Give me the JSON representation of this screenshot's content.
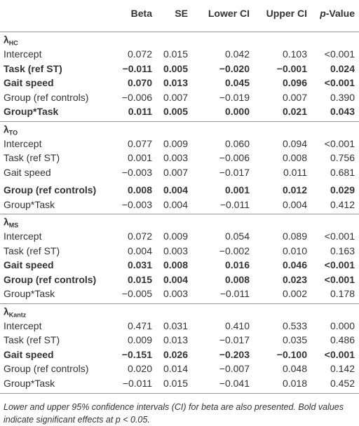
{
  "table": {
    "columns": [
      "Beta",
      "SE",
      "Lower CI",
      "Upper CI",
      {
        "italic": "p",
        "rest": "-Value"
      }
    ],
    "sections": [
      {
        "symbol": "λ",
        "subscript": "HC",
        "rows": [
          {
            "label": "Intercept",
            "values": [
              "0.072",
              "0.015",
              "0.042",
              "0.103",
              "<0.001"
            ],
            "bold": false
          },
          {
            "label": "Task (ref ST)",
            "values": [
              "−0.011",
              "0.005",
              "−0.020",
              "−0.001",
              "0.024"
            ],
            "bold": true
          },
          {
            "label": "Gait speed",
            "values": [
              "0.070",
              "0.013",
              "0.045",
              "0.096",
              "<0.001"
            ],
            "bold": true
          },
          {
            "label": "Group (ref controls)",
            "values": [
              "−0.006",
              "0.007",
              "−0.019",
              "0.007",
              "0.390"
            ],
            "bold": false
          },
          {
            "label": "Group*Task",
            "values": [
              "0.011",
              "0.005",
              "0.000",
              "0.021",
              "0.043"
            ],
            "bold": true
          }
        ]
      },
      {
        "symbol": "λ",
        "subscript": "TO",
        "rows": [
          {
            "label": "Intercept",
            "values": [
              "0.077",
              "0.009",
              "0.060",
              "0.094",
              "<0.001"
            ],
            "bold": false
          },
          {
            "label": "Task (ref ST)",
            "values": [
              "0.001",
              "0.003",
              "−0.006",
              "0.008",
              "0.756"
            ],
            "bold": false
          },
          {
            "label": "Gait speed",
            "values": [
              "−0.003",
              "0.007",
              "−0.017",
              "0.011",
              "0.681"
            ],
            "bold": false
          },
          {
            "label": "Group (ref controls)",
            "values": [
              "0.008",
              "0.004",
              "0.001",
              "0.012",
              "0.029"
            ],
            "bold": true
          },
          {
            "label": "Group*Task",
            "values": [
              "−0.003",
              "0.004",
              "−0.011",
              "0.004",
              "0.412"
            ],
            "bold": false
          }
        ]
      },
      {
        "symbol": "λ",
        "subscript": "MS",
        "rows": [
          {
            "label": "Intercept",
            "values": [
              "0.072",
              "0.009",
              "0.054",
              "0.089",
              "<0.001"
            ],
            "bold": false
          },
          {
            "label": "Task (ref ST)",
            "values": [
              "0.004",
              "0.003",
              "−0.002",
              "0.010",
              "0.163"
            ],
            "bold": false
          },
          {
            "label": "Gait speed",
            "values": [
              "0.031",
              "0.008",
              "0.016",
              "0.046",
              "<0.001"
            ],
            "bold": true
          },
          {
            "label": "Group (ref controls)",
            "values": [
              "0.015",
              "0.004",
              "0.008",
              "0.023",
              "<0.001"
            ],
            "bold": true
          },
          {
            "label": "Group*Task",
            "values": [
              "−0.005",
              "0.003",
              "−0.011",
              "0.002",
              "0.178"
            ],
            "bold": false
          }
        ]
      },
      {
        "symbol": "λ",
        "subscript": "Kantz",
        "rows": [
          {
            "label": "Intercept",
            "values": [
              "0.471",
              "0.031",
              "0.410",
              "0.533",
              "0.000"
            ],
            "bold": false
          },
          {
            "label": "Task (ref ST)",
            "values": [
              "0.009",
              "0.013",
              "−0.017",
              "0.035",
              "0.486"
            ],
            "bold": false
          },
          {
            "label": "Gait speed",
            "values": [
              "−0.151",
              "0.026",
              "−0.203",
              "−0.100",
              "<0.001"
            ],
            "bold": true
          },
          {
            "label": "Group (ref controls)",
            "values": [
              "0.020",
              "0.014",
              "−0.007",
              "0.048",
              "0.142"
            ],
            "bold": false
          },
          {
            "label": "Group*Task",
            "values": [
              "−0.011",
              "0.015",
              "−0.041",
              "0.018",
              "0.452"
            ],
            "bold": false
          }
        ]
      }
    ],
    "footnote": "Lower and upper 95% confidence intervals (CI) for beta are also presented. Bold values indicate significant effects at p < 0.05."
  }
}
